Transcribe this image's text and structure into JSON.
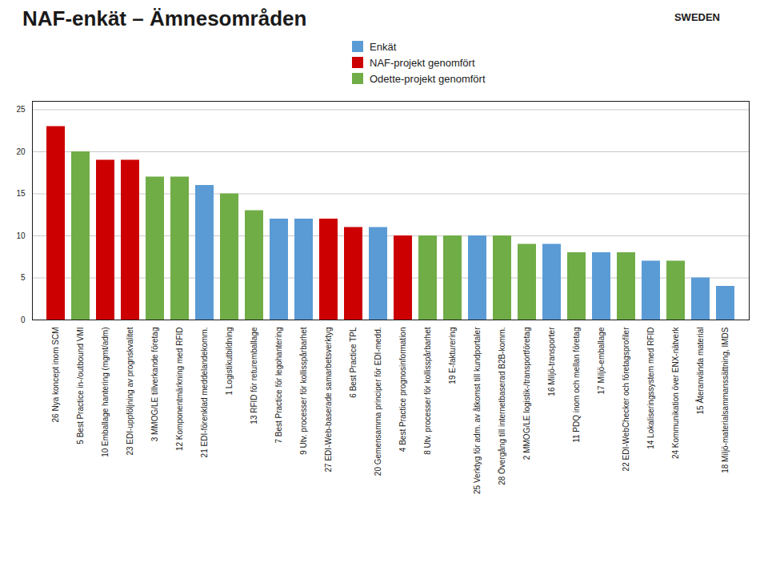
{
  "chart_data": {
    "type": "bar",
    "title": "NAF-enkät – Ämnesområden",
    "annotations": [
      "SWEDEN"
    ],
    "categories": [
      "26 Nya koncept inom SCM",
      "5 Best Practice in-/outbound VMI",
      "10 Emballage hantering (mgmt/adm)",
      "23 EDI-uppföljning av prognskvalitet",
      "3 MMOG/LE tillverkande företag",
      "12 Komponentmärkning med RFID",
      "21 EDI-förenklad meddelandekomm.",
      "1 Logistikutbildning",
      "13 RFID för returemballage",
      "7 Best Practice för legohantering",
      "9 Utv. processer för kollisspårbarhet",
      "27 EDI-Web-baserade samarbetsverktyg",
      "6 Best Practice TPL",
      "20 Gemensamma principer för EDI-medd.",
      "4 Best Practice prognosinformation",
      "8 Utv. processer för kollisspårbarhet",
      "19 E-fakturering",
      "25 Verktyg för adm. av åtkomst till kundportaler",
      "28 Övergång till internetbaserad B2B-komm.",
      "2 MMOG/LE logistik-/transportföretag",
      "16 Miljö-transporter",
      "11 PDQ inom och mellan företag",
      "17 Miljö-emballage",
      "22 EDI-WebChecker och företagsprofiler",
      "14 Lokaliseringssystem med RFID",
      "24 Kommunikation över ENX-nätverk",
      "15 Återanvända material",
      "18 Miljö-materialsammanssättning, IMDS"
    ],
    "series": [
      {
        "name": "Enkät",
        "color": "#5b9bd5",
        "values": [
          null,
          null,
          null,
          null,
          null,
          null,
          16,
          null,
          null,
          12,
          12,
          null,
          null,
          11,
          null,
          null,
          null,
          10,
          null,
          null,
          9,
          null,
          8,
          null,
          7,
          null,
          5,
          4
        ]
      },
      {
        "name": "NAF-projekt genomfört",
        "color": "#cc0000",
        "values": [
          23,
          null,
          19,
          19,
          null,
          null,
          null,
          null,
          null,
          null,
          null,
          12,
          11,
          null,
          10,
          null,
          null,
          null,
          null,
          null,
          null,
          null,
          null,
          null,
          null,
          null,
          null,
          null
        ]
      },
      {
        "name": "Odette-projekt genomfört",
        "color": "#70ad47",
        "values": [
          null,
          20,
          null,
          null,
          17,
          17,
          null,
          15,
          13,
          null,
          null,
          null,
          null,
          null,
          null,
          10,
          10,
          null,
          10,
          9,
          null,
          8,
          null,
          8,
          null,
          7,
          null,
          null
        ]
      }
    ],
    "ylim": [
      0,
      26
    ],
    "yticks": [
      0,
      5,
      10,
      15,
      20,
      25
    ],
    "grid": true,
    "legend": "top"
  }
}
